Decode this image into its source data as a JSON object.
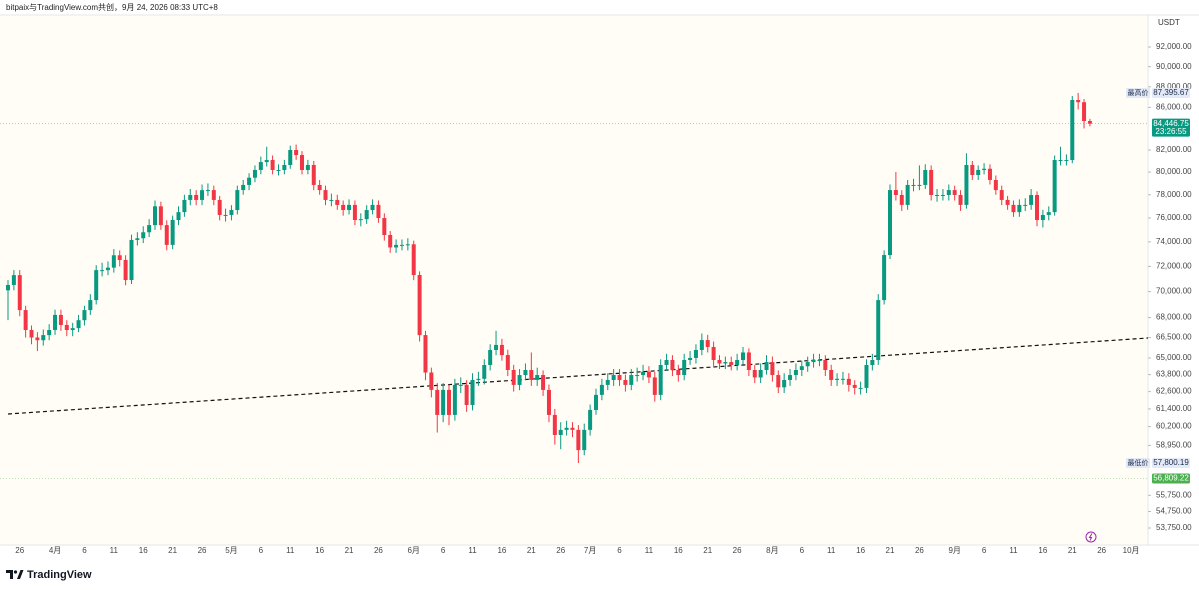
{
  "chart_data": {
    "type": "candlestick",
    "attribution": "bitpaix与TradingView.com共创，9月 24, 2026 08:33 UTC+8",
    "currency": "USDT",
    "brand": "TradingView",
    "log_scale": true,
    "grid": false,
    "up_color": "#089981",
    "down_color": "#f23645",
    "ylim": [
      52740,
      95350
    ],
    "yticks": [
      {
        "value": 92000,
        "label": "92,000.00"
      },
      {
        "value": 90000,
        "label": "90,000.00"
      },
      {
        "value": 88000,
        "label": "88,000.00"
      },
      {
        "value": 86000,
        "label": "86,000.00"
      },
      {
        "value": 82000,
        "label": "82,000.00"
      },
      {
        "value": 80000,
        "label": "80,000.00"
      },
      {
        "value": 78000,
        "label": "78,000.00"
      },
      {
        "value": 76000,
        "label": "76,000.00"
      },
      {
        "value": 74000,
        "label": "74,000.00"
      },
      {
        "value": 72000,
        "label": "72,000.00"
      },
      {
        "value": 70000,
        "label": "70,000.00"
      },
      {
        "value": 68000,
        "label": "68,000.00"
      },
      {
        "value": 66500,
        "label": "66,500.00"
      },
      {
        "value": 65000,
        "label": "65,000.00"
      },
      {
        "value": 63800,
        "label": "63,800.00"
      },
      {
        "value": 62600,
        "label": "62,600.00"
      },
      {
        "value": 61400,
        "label": "61,400.00"
      },
      {
        "value": 60200,
        "label": "60,200.00"
      },
      {
        "value": 58950,
        "label": "58,950.00"
      },
      {
        "value": 55750,
        "label": "55,750.00"
      },
      {
        "value": 54750,
        "label": "54,750.00"
      },
      {
        "value": 53750,
        "label": "53,750.00"
      }
    ],
    "markers": [
      {
        "name": "最高价",
        "value": 87395.67,
        "label": "87,395.67",
        "color": "#e3e9f6",
        "text_color": "#1a2a4a"
      },
      {
        "value": 84446.75,
        "label": "84,446.75",
        "countdown": "23:26:55",
        "color": "#089981",
        "text_color": "#ffffff"
      },
      {
        "name": "最低价",
        "value": 57800.19,
        "label": "57,800.19",
        "color": "#e3e9f6",
        "text_color": "#1a2a4a"
      },
      {
        "value": 56809.22,
        "label": "56,809.22",
        "color": "#4caf50",
        "text_color": "#ffffff"
      }
    ],
    "categories": [
      null,
      null,
      "26",
      null,
      null,
      null,
      null,
      null,
      "4月",
      null,
      null,
      null,
      null,
      "6",
      null,
      null,
      null,
      null,
      "11",
      null,
      null,
      null,
      null,
      "16",
      null,
      null,
      null,
      null,
      "21",
      null,
      null,
      null,
      null,
      "26",
      null,
      null,
      null,
      null,
      "5月",
      null,
      null,
      null,
      null,
      "6",
      null,
      null,
      null,
      null,
      "11",
      null,
      null,
      null,
      null,
      "16",
      null,
      null,
      null,
      null,
      "21",
      null,
      null,
      null,
      null,
      "26",
      null,
      null,
      null,
      null,
      null,
      "6月",
      null,
      null,
      null,
      null,
      "6",
      null,
      null,
      null,
      null,
      "11",
      null,
      null,
      null,
      null,
      "16",
      null,
      null,
      null,
      null,
      "21",
      null,
      null,
      null,
      null,
      "26",
      null,
      null,
      null,
      null,
      "7月",
      null,
      null,
      null,
      null,
      "6",
      null,
      null,
      null,
      null,
      "11",
      null,
      null,
      null,
      null,
      "16",
      null,
      null,
      null,
      null,
      "21",
      null,
      null,
      null,
      null,
      "26",
      null,
      null,
      null,
      null,
      null,
      "8月",
      null,
      null,
      null,
      null,
      "6",
      null,
      null,
      null,
      null,
      "11",
      null,
      null,
      null,
      null,
      "16",
      null,
      null,
      null,
      null,
      "21",
      null,
      null,
      null,
      null,
      "26",
      null,
      null,
      null,
      null,
      null,
      "9月",
      null,
      null,
      null,
      null,
      "6",
      null,
      null,
      null,
      null,
      "11",
      null,
      null,
      null,
      null,
      "16",
      null,
      null,
      null,
      null,
      "21",
      null,
      null,
      null,
      null,
      "26",
      null,
      null,
      null,
      null,
      "10月",
      null,
      null
    ],
    "open": [
      70100,
      70520,
      71300,
      68570,
      67060,
      66500,
      66300,
      66680,
      67060,
      68200,
      67440,
      67060,
      67200,
      67800,
      68570,
      69340,
      71700,
      71700,
      71900,
      72900,
      72520,
      70910,
      74160,
      74300,
      74800,
      75400,
      77000,
      75400,
      73750,
      75830,
      76500,
      77550,
      77980,
      77550,
      78400,
      78410,
      77550,
      76260,
      76260,
      76680,
      78410,
      78860,
      79500,
      80190,
      80900,
      81090,
      80190,
      80190,
      80640,
      82000,
      81540,
      80190,
      80640,
      78860,
      78410,
      77550,
      77550,
      77120,
      76680,
      77120,
      75830,
      75900,
      76680,
      77120,
      76000,
      74570,
      73540,
      73750,
      73750,
      73800,
      71310,
      66680,
      63950,
      62720,
      60990,
      62720,
      60990,
      63070,
      63070,
      61670,
      63420,
      63500,
      64490,
      65580,
      65950,
      65210,
      64130,
      63070,
      63770,
      64130,
      63420,
      63770,
      62720,
      60990,
      59640,
      59980,
      60120,
      59980,
      58640,
      59980,
      61330,
      62370,
      63070,
      63420,
      63770,
      63420,
      63070,
      63770,
      63770,
      64000,
      63600,
      62370,
      64490,
      64850,
      64130,
      63770,
      64850,
      65000,
      65580,
      66310,
      65800,
      64850,
      64600,
      64700,
      64490,
      64850,
      65400,
      64130,
      63600,
      64130,
      64700,
      63770,
      62900,
      63420,
      63770,
      64130,
      64400,
      64700,
      64850,
      64850,
      64130,
      63420,
      63500,
      63500,
      63070,
      62860,
      62860,
      64490,
      64850,
      69340,
      72920,
      78410,
      77980,
      77120,
      78860,
      78860,
      78860,
      80190,
      77980,
      77980,
      77980,
      78410,
      77980,
      77120,
      80640,
      79740,
      80190,
      80300,
      79300,
      78410,
      77550,
      77120,
      76500,
      77120,
      77120,
      77980,
      75830,
      76260,
      76500,
      81090,
      81090,
      81090,
      86710,
      86500,
      84700,
      null,
      null,
      null,
      null,
      null,
      null,
      null,
      null,
      null
    ],
    "high": [
      70900,
      71700,
      71700,
      68900,
      67400,
      66900,
      67100,
      67500,
      68600,
      68600,
      67800,
      67600,
      68200,
      68900,
      69800,
      72100,
      72300,
      72400,
      73400,
      73300,
      72900,
      74600,
      74800,
      75300,
      75900,
      77500,
      77400,
      75800,
      76200,
      77000,
      78000,
      78500,
      78400,
      78900,
      79000,
      78800,
      77900,
      76800,
      77100,
      78800,
      79300,
      79900,
      80600,
      81400,
      82300,
      81500,
      80700,
      81100,
      82400,
      82500,
      81900,
      81100,
      81000,
      79300,
      78800,
      78100,
      78000,
      77500,
      77600,
      77500,
      76400,
      77100,
      77600,
      77500,
      76400,
      74900,
      74200,
      74200,
      74300,
      74100,
      71600,
      67000,
      64300,
      63200,
      63200,
      63100,
      63500,
      63600,
      63400,
      63900,
      64000,
      64900,
      66000,
      67000,
      66400,
      65600,
      64500,
      64200,
      64600,
      65400,
      64300,
      64100,
      63100,
      61400,
      60500,
      60600,
      60500,
      60300,
      60400,
      61700,
      62800,
      63500,
      63900,
      64200,
      64200,
      63800,
      64200,
      64300,
      64500,
      64400,
      64000,
      64900,
      65300,
      65200,
      64500,
      65300,
      65500,
      66000,
      66800,
      66700,
      66200,
      65200,
      65100,
      65100,
      65300,
      65800,
      65700,
      64500,
      64600,
      65200,
      65100,
      64100,
      63900,
      64200,
      64600,
      64800,
      65100,
      65300,
      65300,
      65200,
      64500,
      63900,
      64000,
      63900,
      63400,
      63300,
      64900,
      65300,
      69800,
      73300,
      78900,
      80000,
      78400,
      79300,
      79400,
      80600,
      80700,
      80600,
      78500,
      78500,
      78900,
      78800,
      78400,
      81700,
      81000,
      80600,
      80800,
      80700,
      79700,
      78800,
      77900,
      77500,
      77600,
      77700,
      78500,
      78300,
      76700,
      77000,
      81500,
      82300,
      81600,
      87100,
      87395.67,
      86800,
      84900,
      null,
      null,
      null,
      null,
      null,
      null,
      null,
      null,
      null
    ],
    "low": [
      67800,
      70100,
      68100,
      66500,
      66000,
      65500,
      65900,
      66300,
      66700,
      67000,
      66600,
      66600,
      66900,
      67400,
      68200,
      69000,
      71200,
      71300,
      71500,
      72000,
      70500,
      70600,
      73700,
      73900,
      74400,
      75000,
      75000,
      73300,
      73400,
      75400,
      76100,
      77100,
      77100,
      77100,
      77900,
      77100,
      75800,
      75700,
      75800,
      76300,
      78000,
      78400,
      79100,
      79800,
      80500,
      79800,
      79700,
      79800,
      80300,
      81100,
      79800,
      79800,
      78400,
      78000,
      77100,
      77000,
      76700,
      76200,
      76300,
      75400,
      75300,
      75500,
      76300,
      75600,
      74100,
      73100,
      73100,
      73300,
      73300,
      70900,
      66200,
      63400,
      62200,
      59800,
      60500,
      60300,
      60600,
      62500,
      61200,
      61300,
      63000,
      63100,
      64100,
      65200,
      64800,
      63700,
      62600,
      62700,
      63400,
      63000,
      63000,
      62300,
      60500,
      59000,
      58700,
      59600,
      59500,
      57800.19,
      58300,
      59600,
      61000,
      62000,
      62700,
      63000,
      63000,
      62600,
      62700,
      63300,
      63400,
      63200,
      61900,
      62000,
      64100,
      63700,
      63300,
      63400,
      64500,
      64600,
      65200,
      65400,
      64400,
      64200,
      64200,
      64100,
      64100,
      64500,
      63700,
      63200,
      63200,
      63800,
      63300,
      62500,
      62500,
      63000,
      63400,
      63700,
      64000,
      64300,
      64400,
      63700,
      63000,
      63000,
      63100,
      62600,
      62400,
      62400,
      62500,
      64100,
      64500,
      69000,
      72600,
      77500,
      76600,
      76700,
      78300,
      78400,
      78500,
      77500,
      77400,
      77500,
      77500,
      77500,
      76600,
      76800,
      79300,
      79300,
      79800,
      78900,
      78000,
      77100,
      76700,
      76100,
      76100,
      76600,
      76700,
      75300,
      75200,
      75800,
      76200,
      80600,
      80600,
      80800,
      85800,
      84000,
      84200,
      null,
      null,
      null,
      null,
      null,
      null,
      null,
      null,
      null
    ],
    "close": [
      70520,
      71300,
      68570,
      67060,
      66500,
      66300,
      66680,
      67060,
      68200,
      67440,
      67060,
      67200,
      67800,
      68570,
      69340,
      71700,
      71700,
      71900,
      72900,
      72520,
      70910,
      74160,
      74300,
      74800,
      75400,
      77000,
      75400,
      73750,
      75830,
      76500,
      77550,
      77980,
      77550,
      78400,
      78410,
      77550,
      76260,
      76260,
      76680,
      78410,
      78860,
      79500,
      80190,
      80900,
      81090,
      80190,
      80190,
      80640,
      82000,
      81540,
      80190,
      80640,
      78860,
      78410,
      77550,
      77550,
      77120,
      76680,
      77120,
      75830,
      75900,
      76680,
      77120,
      76000,
      74570,
      73540,
      73750,
      73750,
      73800,
      71310,
      66680,
      63950,
      62720,
      60990,
      62720,
      60990,
      63070,
      63070,
      61670,
      63420,
      63500,
      64490,
      65580,
      65950,
      65210,
      64130,
      63070,
      63770,
      64130,
      63420,
      63770,
      62720,
      60990,
      59640,
      59980,
      60120,
      59980,
      58640,
      59980,
      61330,
      62370,
      63070,
      63420,
      63770,
      63420,
      63070,
      63770,
      63770,
      64000,
      63600,
      62370,
      64490,
      64850,
      64130,
      63770,
      64850,
      65000,
      65580,
      66310,
      65800,
      64850,
      64600,
      64700,
      64490,
      64850,
      65400,
      64130,
      63600,
      64130,
      64700,
      63770,
      62900,
      63420,
      63770,
      64130,
      64400,
      64700,
      64850,
      64850,
      64130,
      63420,
      63500,
      63500,
      63070,
      62860,
      62860,
      64490,
      64850,
      69340,
      72920,
      78410,
      77980,
      77120,
      78860,
      78860,
      78860,
      80190,
      77980,
      77980,
      77980,
      78410,
      77980,
      77120,
      80640,
      79740,
      80190,
      80300,
      79300,
      78410,
      77550,
      77120,
      76500,
      77120,
      77120,
      77980,
      75830,
      76260,
      76500,
      81090,
      81090,
      81090,
      86710,
      86500,
      84700,
      84446.75,
      null,
      null,
      null,
      null,
      null,
      null,
      null,
      null,
      null
    ]
  }
}
